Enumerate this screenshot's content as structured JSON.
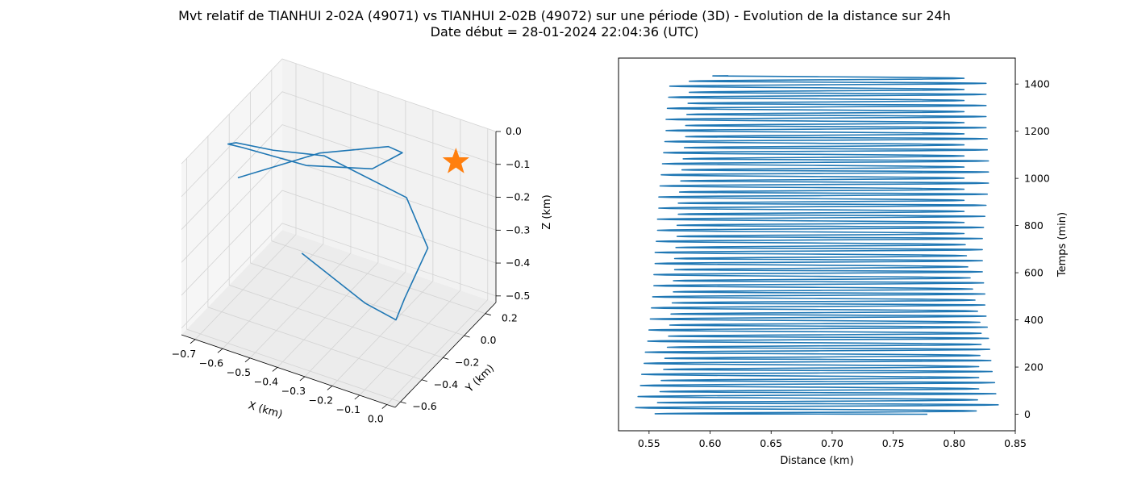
{
  "title": {
    "line1": "Mvt relatif de TIANHUI 2-02A (49071) vs TIANHUI 2-02B (49072) sur une période (3D) - Evolution de la distance sur 24h",
    "line2": "Date début = 28-01-2024 22:04:36 (UTC)"
  },
  "colors": {
    "series": "#1f77b4",
    "star": "#ff7f0e",
    "grid": "#d3d3d3",
    "pane": "#f2f2f2"
  },
  "chart_data": [
    {
      "type": "line3d",
      "xlabel": "X (km)",
      "ylabel": "Y (km)",
      "zlabel": "Z (km)",
      "xticks": [
        "−0.7",
        "−0.6",
        "−0.5",
        "−0.4",
        "−0.3",
        "−0.2",
        "−0.1",
        "0.0"
      ],
      "yticks": [
        "−0.6",
        "−0.4",
        "−0.2",
        "0.0",
        "0.2"
      ],
      "zticks": [
        "0.0",
        "−0.1",
        "−0.2",
        "−0.3",
        "−0.4",
        "−0.5"
      ],
      "xlim": [
        -0.75,
        0.03
      ],
      "ylim": [
        -0.65,
        0.3
      ],
      "zlim": [
        -0.52,
        0.0
      ],
      "grid": true,
      "marker": {
        "symbol": "star",
        "x": 0.0,
        "y": 0.0,
        "z": 0.0
      },
      "series": [
        {
          "points": [
            [
              -0.33,
              -0.6,
              -0.17
            ],
            [
              -0.11,
              -0.57,
              -0.27
            ],
            [
              -0.06,
              -0.41,
              -0.36
            ],
            [
              -0.11,
              -0.2,
              -0.38
            ],
            [
              -0.11,
              0.02,
              -0.3
            ],
            [
              -0.25,
              0.18,
              -0.24
            ],
            [
              -0.5,
              0.05,
              -0.14
            ],
            [
              -0.62,
              -0.12,
              -0.1
            ],
            [
              -0.69,
              -0.29,
              -0.04
            ],
            [
              -0.7,
              -0.34,
              -0.03
            ],
            [
              -0.65,
              -0.33,
              -0.03
            ],
            [
              -0.48,
              -0.17,
              -0.09
            ],
            [
              -0.29,
              -0.04,
              -0.09
            ],
            [
              -0.18,
              -0.04,
              -0.01
            ],
            [
              -0.2,
              -0.12,
              0.03
            ],
            [
              -0.38,
              -0.3,
              0.02
            ],
            [
              -0.61,
              -0.48,
              -0.06
            ]
          ]
        }
      ]
    },
    {
      "type": "line",
      "xlabel": "Distance (km)",
      "ylabel": "Temps (min)",
      "xlim": [
        0.525,
        0.85
      ],
      "ylim": [
        -70,
        1510
      ],
      "xticks": [
        0.55,
        0.6,
        0.65,
        0.7,
        0.75,
        0.8,
        0.85
      ],
      "yticks": [
        0,
        200,
        400,
        600,
        800,
        1000,
        1200,
        1400
      ],
      "grid": false,
      "period_min": 47,
      "series": [
        {
          "description": "distance oscillating between a minimum and a maximum over time",
          "start": [
            0.778,
            0
          ],
          "end": [
            0.615,
            1435
          ],
          "max_values": [
            0.836,
            0.834,
            0.833,
            0.831,
            0.83,
            0.829,
            0.828,
            0.827,
            0.826,
            0.825,
            0.825,
            0.824,
            0.823,
            0.823,
            0.823,
            0.823,
            0.824,
            0.825,
            0.826,
            0.827,
            0.828,
            0.828,
            0.828,
            0.827,
            0.827,
            0.826,
            0.826,
            0.826,
            0.826,
            0.826,
            0.826
          ],
          "min_values": [
            0.539,
            0.541,
            0.543,
            0.544,
            0.546,
            0.547,
            0.549,
            0.55,
            0.551,
            0.552,
            0.553,
            0.554,
            0.554,
            0.555,
            0.555,
            0.556,
            0.557,
            0.557,
            0.558,
            0.558,
            0.559,
            0.56,
            0.561,
            0.562,
            0.563,
            0.564,
            0.564,
            0.565,
            0.566,
            0.567
          ],
          "secondary_max_values": [
            0.818,
            0.819,
            0.82,
            0.82,
            0.82,
            0.821,
            0.822,
            0.822,
            0.821,
            0.819,
            0.817,
            0.815,
            0.813,
            0.811,
            0.81,
            0.809,
            0.808,
            0.808
          ]
        }
      ]
    }
  ]
}
